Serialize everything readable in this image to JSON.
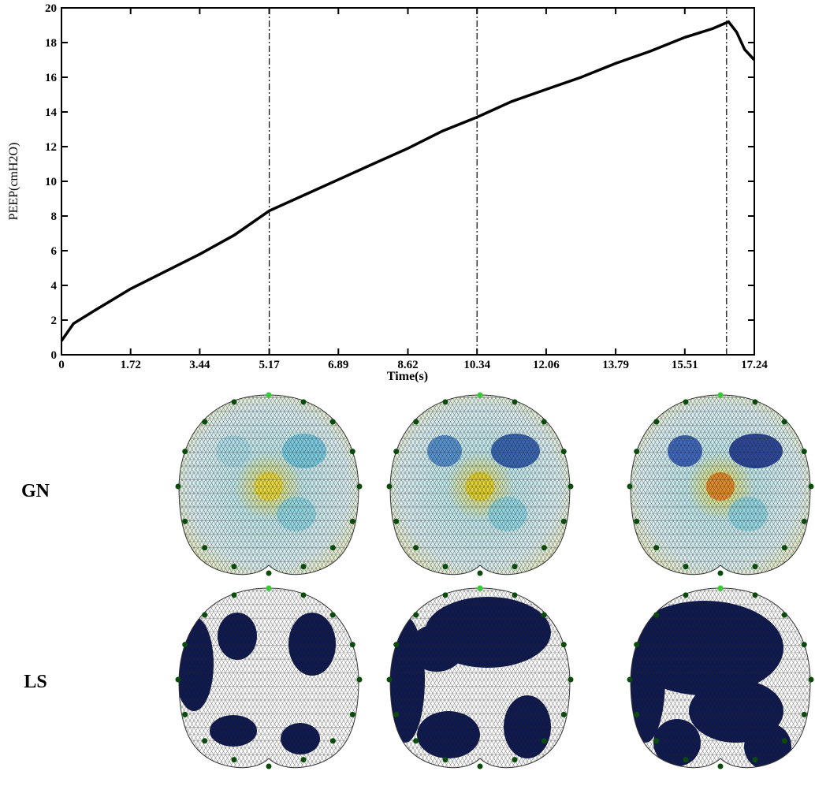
{
  "chart_data": {
    "type": "line",
    "y_label": "PEEP(cmH2O)",
    "x_label": "Time(s)",
    "x": [
      0,
      0.3,
      0.86,
      1.72,
      2.58,
      3.44,
      4.3,
      5.17,
      6.03,
      6.89,
      7.75,
      8.62,
      9.48,
      10.34,
      11.2,
      12.06,
      12.93,
      13.79,
      14.65,
      15.51,
      16.2,
      16.6,
      16.8,
      17.0,
      17.24
    ],
    "series": [
      {
        "color": "#000000",
        "values": [
          0.8,
          1.8,
          2.6,
          3.8,
          4.8,
          5.8,
          6.9,
          8.3,
          9.2,
          10.1,
          11.0,
          11.9,
          12.9,
          13.7,
          14.6,
          15.3,
          16.0,
          16.8,
          17.5,
          18.3,
          18.8,
          19.2,
          18.6,
          17.6,
          17.0
        ]
      }
    ],
    "xlim": [
      0,
      17.24
    ],
    "ylim": [
      0,
      20
    ],
    "xticks": [
      0,
      1.72,
      3.44,
      5.17,
      6.89,
      8.62,
      10.34,
      12.06,
      13.79,
      15.51,
      17.24
    ],
    "yticks": [
      0,
      2,
      4,
      6,
      8,
      10,
      12,
      14,
      16,
      18,
      20
    ],
    "vlines": [
      5.17,
      10.34,
      16.55
    ]
  },
  "image_rows": [
    "GN",
    "LS"
  ]
}
